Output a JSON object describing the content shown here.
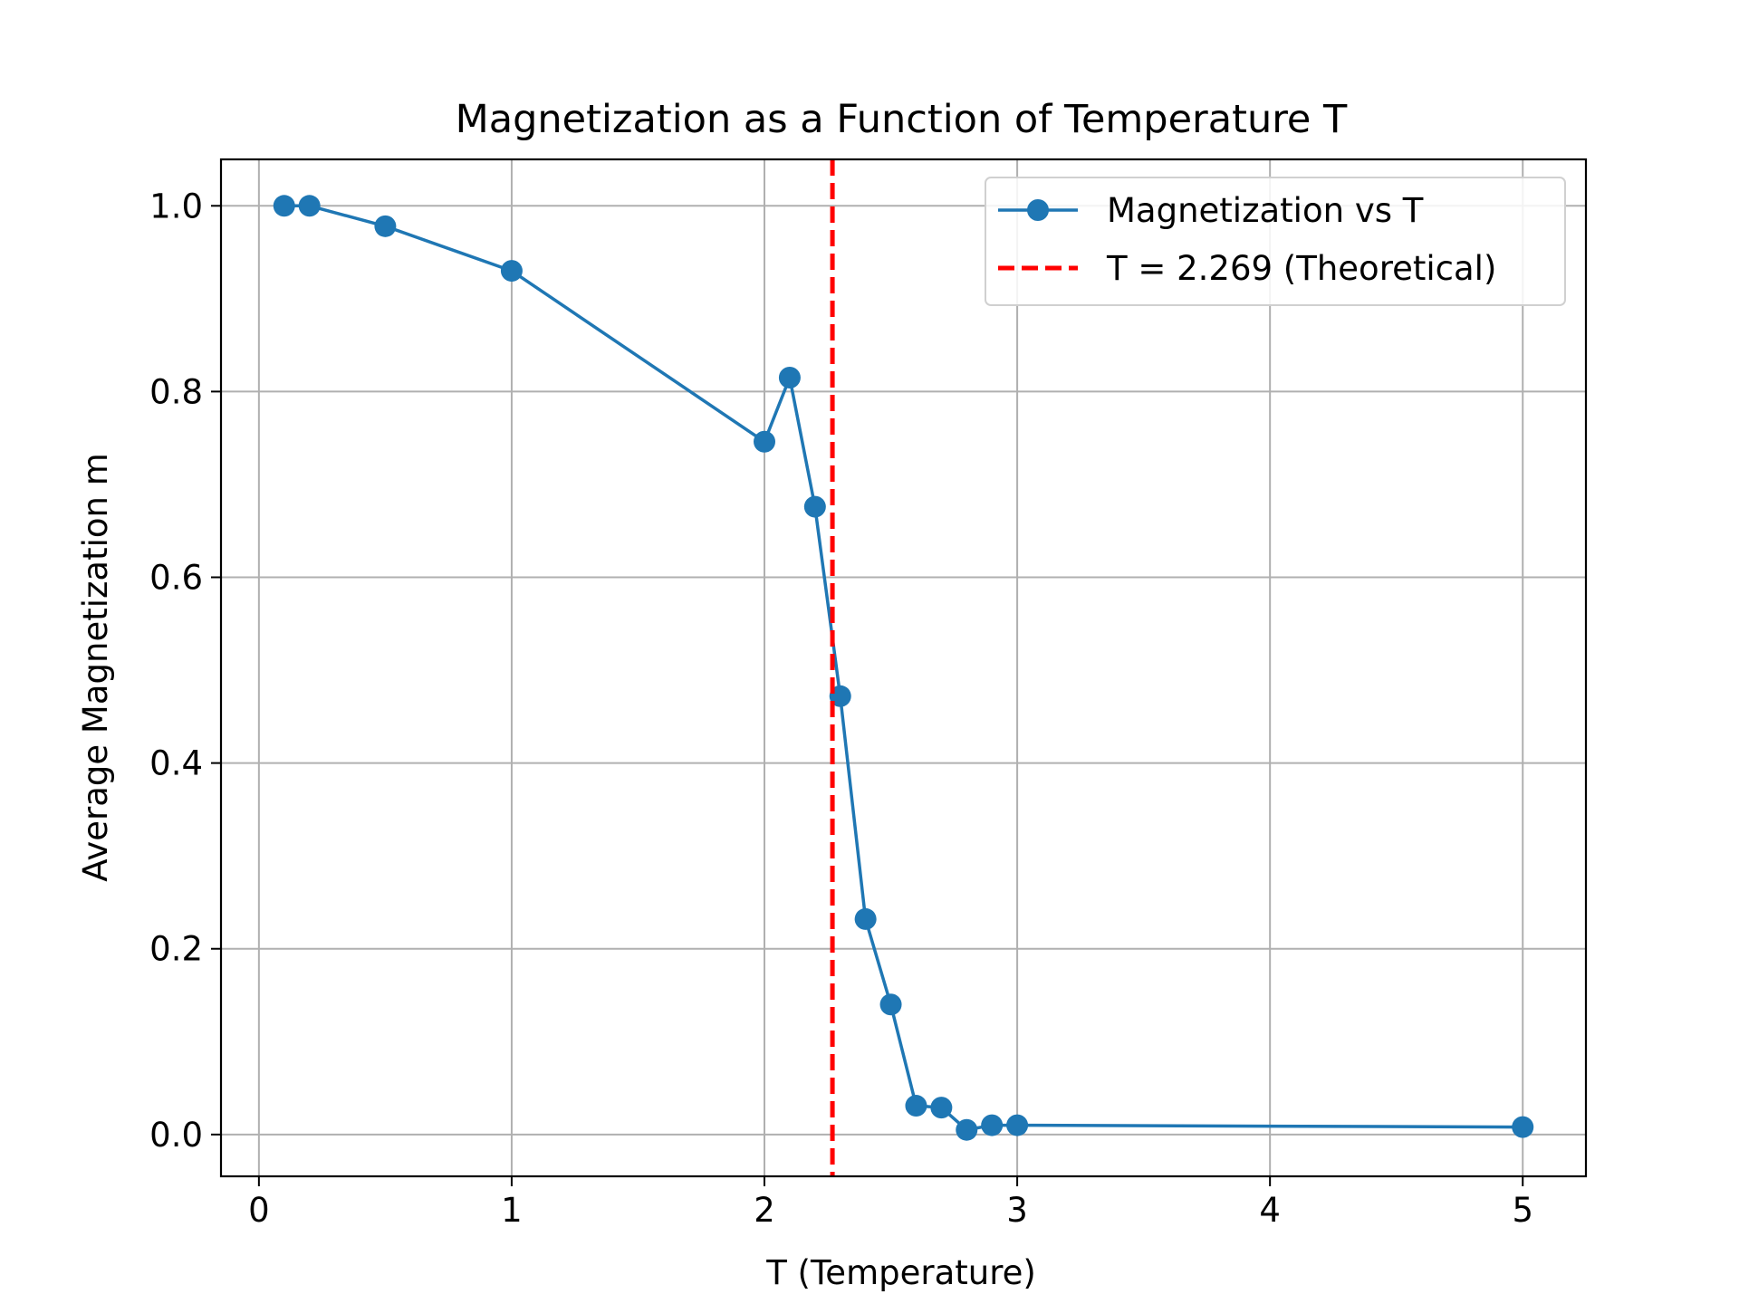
{
  "chart_data": {
    "type": "line",
    "title": "Magnetization as a Function of Temperature T",
    "xlabel": "T (Temperature)",
    "ylabel": "Average Magnetization m",
    "xlim": [
      -0.15,
      5.25
    ],
    "ylim": [
      -0.045,
      1.05
    ],
    "xticks": [
      0,
      1,
      2,
      3,
      4,
      5
    ],
    "xtick_labels": [
      "0",
      "1",
      "2",
      "3",
      "4",
      "5"
    ],
    "yticks": [
      0.0,
      0.2,
      0.4,
      0.6,
      0.8,
      1.0
    ],
    "ytick_labels": [
      "0.0",
      "0.2",
      "0.4",
      "0.6",
      "0.8",
      "1.0"
    ],
    "grid": true,
    "legend_position": "top-right",
    "series": [
      {
        "name": "Magnetization vs T",
        "color": "#1f77b4",
        "marker": "circle",
        "x": [
          0.1,
          0.2,
          0.5,
          1.0,
          2.0,
          2.1,
          2.2,
          2.3,
          2.4,
          2.5,
          2.6,
          2.7,
          2.8,
          2.9,
          3.0,
          5.0
        ],
        "y": [
          1.0,
          1.0,
          0.978,
          0.93,
          0.746,
          0.815,
          0.676,
          0.472,
          0.232,
          0.14,
          0.031,
          0.029,
          0.005,
          0.01,
          0.01,
          0.008
        ]
      }
    ],
    "vlines": [
      {
        "name": "T = 2.269 (Theoretical)",
        "x": 2.269,
        "color": "#ff0000",
        "style": "dashed"
      }
    ]
  }
}
